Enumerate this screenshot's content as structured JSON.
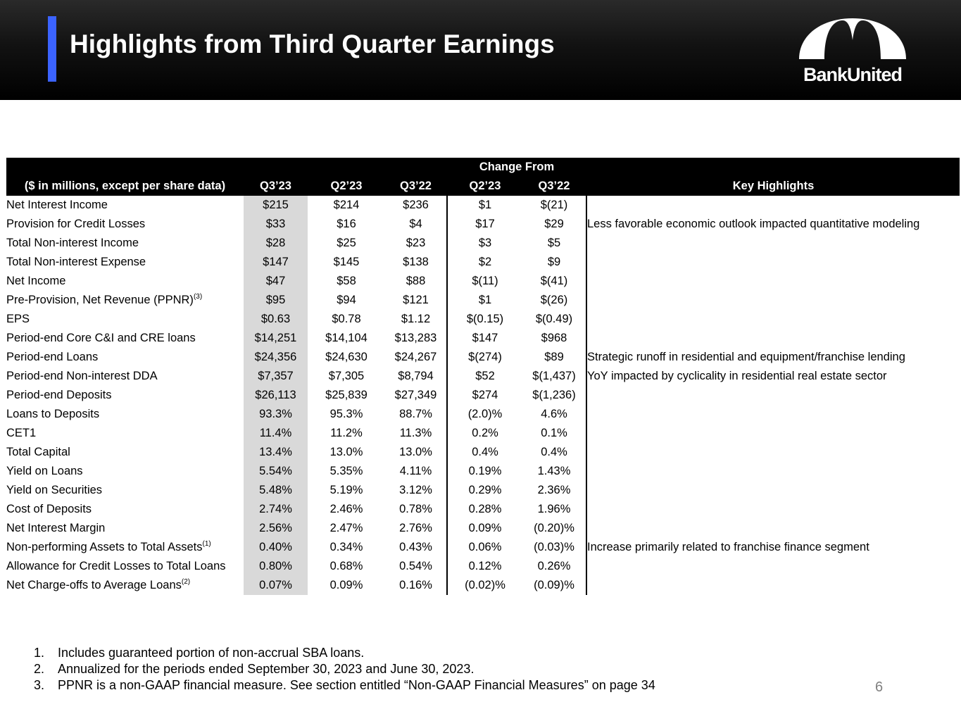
{
  "header": {
    "title": "Highlights from Third Quarter Earnings",
    "logo_text": "BankUnited"
  },
  "table": {
    "group_header": "Change From",
    "columns": [
      "($ in millions, except per share data)",
      "Q3’23",
      "Q2’23",
      "Q3’22",
      "Q2’23",
      "Q3’22",
      "Key Highlights"
    ],
    "rows": [
      {
        "label": "Net Interest Income",
        "sup": "",
        "q3_23": "$215",
        "q2_23": "$214",
        "q3_22": "$236",
        "chg_q2": "$1",
        "chg_q3": "$(21)",
        "highlight": ""
      },
      {
        "label": "Provision for Credit Losses",
        "sup": "",
        "q3_23": "$33",
        "q2_23": "$16",
        "q3_22": "$4",
        "chg_q2": "$17",
        "chg_q3": "$29",
        "highlight": "Less favorable economic outlook impacted quantitative modeling"
      },
      {
        "label": "Total Non-interest Income",
        "sup": "",
        "q3_23": "$28",
        "q2_23": "$25",
        "q3_22": "$23",
        "chg_q2": "$3",
        "chg_q3": "$5",
        "highlight": ""
      },
      {
        "label": "Total Non-interest Expense",
        "sup": "",
        "q3_23": "$147",
        "q2_23": "$145",
        "q3_22": "$138",
        "chg_q2": "$2",
        "chg_q3": "$9",
        "highlight": ""
      },
      {
        "label": "Net Income",
        "sup": "",
        "q3_23": "$47",
        "q2_23": "$58",
        "q3_22": "$88",
        "chg_q2": "$(11)",
        "chg_q3": "$(41)",
        "highlight": ""
      },
      {
        "label": "Pre-Provision, Net Revenue (PPNR)",
        "sup": "(3)",
        "q3_23": "$95",
        "q2_23": "$94",
        "q3_22": "$121",
        "chg_q2": "$1",
        "chg_q3": "$(26)",
        "highlight": ""
      },
      {
        "label": "EPS",
        "sup": "",
        "q3_23": "$0.63",
        "q2_23": "$0.78",
        "q3_22": "$1.12",
        "chg_q2": "$(0.15)",
        "chg_q3": "$(0.49)",
        "highlight": ""
      },
      {
        "label": "Period-end Core C&I and CRE loans",
        "sup": "",
        "q3_23": "$14,251",
        "q2_23": "$14,104",
        "q3_22": "$13,283",
        "chg_q2": "$147",
        "chg_q3": "$968",
        "highlight": ""
      },
      {
        "label": "Period-end Loans",
        "sup": "",
        "q3_23": "$24,356",
        "q2_23": "$24,630",
        "q3_22": "$24,267",
        "chg_q2": "$(274)",
        "chg_q3": "$89",
        "highlight": "Strategic runoff in residential and equipment/franchise lending"
      },
      {
        "label": "Period-end Non-interest DDA",
        "sup": "",
        "q3_23": "$7,357",
        "q2_23": "$7,305",
        "q3_22": "$8,794",
        "chg_q2": "$52",
        "chg_q3": "$(1,437)",
        "highlight": "YoY impacted by cyclicality in residential real estate sector"
      },
      {
        "label": "Period-end Deposits",
        "sup": "",
        "q3_23": "$26,113",
        "q2_23": "$25,839",
        "q3_22": "$27,349",
        "chg_q2": "$274",
        "chg_q3": "$(1,236)",
        "highlight": ""
      },
      {
        "label": "Loans to Deposits",
        "sup": "",
        "q3_23": "93.3%",
        "q2_23": "95.3%",
        "q3_22": "88.7%",
        "chg_q2": "(2.0)%",
        "chg_q3": "4.6%",
        "highlight": ""
      },
      {
        "label": "CET1",
        "sup": "",
        "q3_23": "11.4%",
        "q2_23": "11.2%",
        "q3_22": "11.3%",
        "chg_q2": "0.2%",
        "chg_q3": "0.1%",
        "highlight": ""
      },
      {
        "label": "Total Capital",
        "sup": "",
        "q3_23": "13.4%",
        "q2_23": "13.0%",
        "q3_22": "13.0%",
        "chg_q2": "0.4%",
        "chg_q3": "0.4%",
        "highlight": ""
      },
      {
        "label": "Yield on Loans",
        "sup": "",
        "q3_23": "5.54%",
        "q2_23": "5.35%",
        "q3_22": "4.11%",
        "chg_q2": "0.19%",
        "chg_q3": "1.43%",
        "highlight": ""
      },
      {
        "label": "Yield on Securities",
        "sup": "",
        "q3_23": "5.48%",
        "q2_23": "5.19%",
        "q3_22": "3.12%",
        "chg_q2": "0.29%",
        "chg_q3": "2.36%",
        "highlight": ""
      },
      {
        "label": "Cost of Deposits",
        "sup": "",
        "q3_23": "2.74%",
        "q2_23": "2.46%",
        "q3_22": "0.78%",
        "chg_q2": "0.28%",
        "chg_q3": "1.96%",
        "highlight": ""
      },
      {
        "label": "Net Interest Margin",
        "sup": "",
        "q3_23": "2.56%",
        "q2_23": "2.47%",
        "q3_22": "2.76%",
        "chg_q2": "0.09%",
        "chg_q3": "(0.20)%",
        "highlight": ""
      },
      {
        "label": "Non-performing Assets to Total Assets",
        "sup": "(1)",
        "q3_23": "0.40%",
        "q2_23": "0.34%",
        "q3_22": "0.43%",
        "chg_q2": "0.06%",
        "chg_q3": "(0.03)%",
        "highlight": "Increase primarily related to franchise finance segment"
      },
      {
        "label": "Allowance for Credit Losses to Total Loans",
        "sup": "",
        "q3_23": "0.80%",
        "q2_23": "0.68%",
        "q3_22": "0.54%",
        "chg_q2": "0.12%",
        "chg_q3": "0.26%",
        "highlight": ""
      },
      {
        "label": "Net Charge-offs to Average Loans",
        "sup": "(2)",
        "q3_23": "0.07%",
        "q2_23": "0.09%",
        "q3_22": "0.16%",
        "chg_q2": "(0.02)%",
        "chg_q3": "(0.09)%",
        "highlight": ""
      }
    ]
  },
  "footnotes": [
    {
      "num": "1.",
      "text": "Includes guaranteed portion of non-accrual SBA loans."
    },
    {
      "num": "2.",
      "text": "Annualized for the periods ended September 30, 2023 and June 30, 2023."
    },
    {
      "num": "3.",
      "text": "PPNR is a non-GAAP financial measure. See section entitled “Non-GAAP Financial Measures” on page 34"
    }
  ],
  "page_number": "6"
}
